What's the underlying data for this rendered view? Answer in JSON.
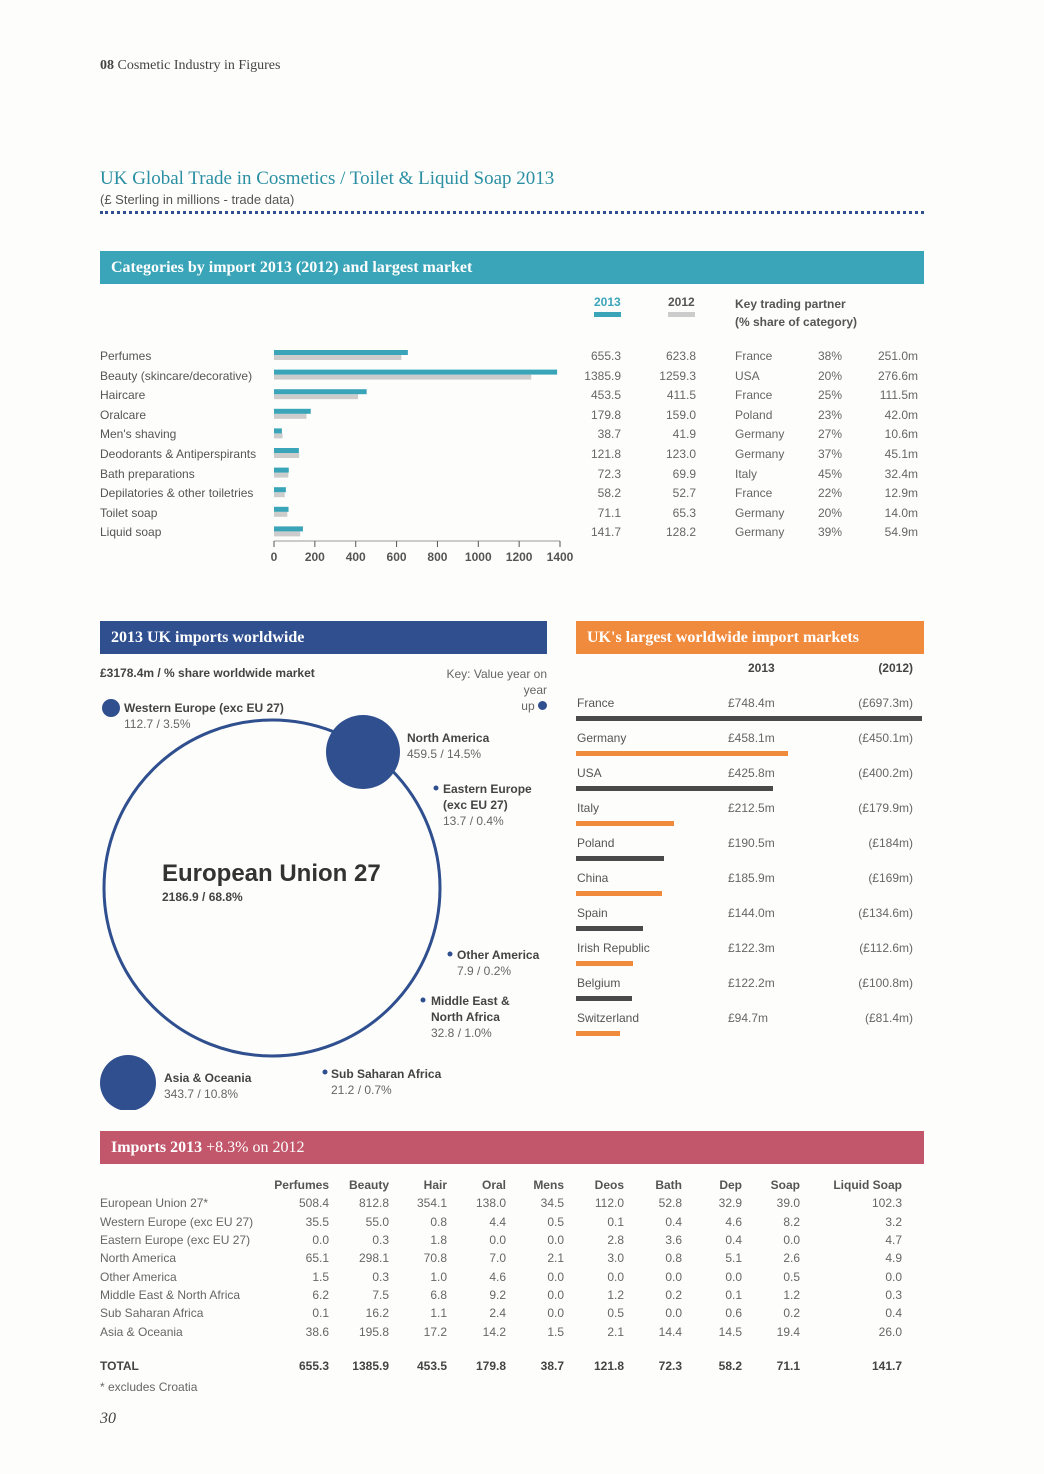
{
  "page": {
    "section_number": "08",
    "section_title": "Cosmetic Industry in Figures",
    "title": "UK Global Trade in Cosmetics / Toilet & Liquid Soap 2013",
    "subtitle": "(£ Sterling in millions - trade data)",
    "page_number": "30"
  },
  "colors": {
    "teal": "#3aa5b8",
    "navy": "#2f4f8f",
    "orange": "#f08a3c",
    "rose": "#c2566a",
    "grey": "#cccccc",
    "dark": "#4a4a4a"
  },
  "categories_panel": {
    "header": "Categories by import 2013 (2012) and largest market",
    "col_2013": "2013",
    "col_2012": "2012",
    "partner_header_1": "Key trading partner",
    "partner_header_2": "(% share of category)",
    "rows": [
      {
        "name": "Perfumes",
        "v2013": "655.3",
        "v2012": "623.8",
        "partner": "France",
        "share": "38%",
        "value": "251.0m"
      },
      {
        "name": "Beauty (skincare/decorative)",
        "v2013": "1385.9",
        "v2012": "1259.3",
        "partner": "USA",
        "share": "20%",
        "value": "276.6m"
      },
      {
        "name": "Haircare",
        "v2013": "453.5",
        "v2012": "411.5",
        "partner": "France",
        "share": "25%",
        "value": "111.5m"
      },
      {
        "name": "Oralcare",
        "v2013": "179.8",
        "v2012": "159.0",
        "partner": "Poland",
        "share": "23%",
        "value": "42.0m"
      },
      {
        "name": "Men's shaving",
        "v2013": "38.7",
        "v2012": "41.9",
        "partner": "Germany",
        "share": "27%",
        "value": "10.6m"
      },
      {
        "name": "Deodorants & Antiperspirants",
        "v2013": "121.8",
        "v2012": "123.0",
        "partner": "Germany",
        "share": "37%",
        "value": "45.1m"
      },
      {
        "name": "Bath preparations",
        "v2013": "72.3",
        "v2012": "69.9",
        "partner": "Italy",
        "share": "45%",
        "value": "32.4m"
      },
      {
        "name": "Depilatories & other toiletries",
        "v2013": "58.2",
        "v2012": "52.7",
        "partner": "France",
        "share": "22%",
        "value": "12.9m"
      },
      {
        "name": "Toilet soap",
        "v2013": "71.1",
        "v2012": "65.3",
        "partner": "Germany",
        "share": "20%",
        "value": "14.0m"
      },
      {
        "name": "Liquid soap",
        "v2013": "141.7",
        "v2012": "128.2",
        "partner": "Germany",
        "share": "39%",
        "value": "54.9m"
      }
    ]
  },
  "chart_data": [
    {
      "type": "bar",
      "orientation": "horizontal",
      "categories": [
        "Perfumes",
        "Beauty (skincare/decorative)",
        "Haircare",
        "Oralcare",
        "Men's shaving",
        "Deodorants & Antiperspirants",
        "Bath preparations",
        "Depilatories & other toiletries",
        "Toilet soap",
        "Liquid soap"
      ],
      "series": [
        {
          "name": "2013",
          "values": [
            655.3,
            1385.9,
            453.5,
            179.8,
            38.7,
            121.8,
            72.3,
            58.2,
            71.1,
            141.7
          ]
        },
        {
          "name": "2012",
          "values": [
            623.8,
            1259.3,
            411.5,
            159.0,
            41.9,
            123.0,
            69.9,
            52.7,
            65.3,
            128.2
          ]
        }
      ],
      "xlim": [
        0,
        1400
      ],
      "xticks": [
        "0",
        "200",
        "400",
        "600",
        "800",
        "1000",
        "1200",
        "1400"
      ]
    },
    {
      "type": "bar",
      "orientation": "horizontal",
      "categories": [
        "France",
        "Germany",
        "USA",
        "Italy",
        "Poland",
        "China",
        "Spain",
        "Irish Republic",
        "Belgium",
        "Switzerland"
      ],
      "series": [
        {
          "name": "2013",
          "values": [
            748.4,
            458.1,
            425.8,
            212.5,
            190.5,
            185.9,
            144.0,
            122.3,
            122.2,
            94.7
          ]
        }
      ],
      "values_2012": [
        697.3,
        450.1,
        400.2,
        179.9,
        184,
        169,
        134.6,
        112.6,
        100.8,
        81.4
      ]
    }
  ],
  "worldwide": {
    "header": "2013 UK imports worldwide",
    "total": "£3178.4m / % share worldwide market",
    "key": "Key: Value year on year",
    "key_up": "up",
    "regions": {
      "western_europe": {
        "name": "Western Europe (exc EU 27)",
        "value": "112.7 / 3.5%"
      },
      "north_america": {
        "name": "North America",
        "value": "459.5 / 14.5%"
      },
      "eastern_europe": {
        "name1": "Eastern Europe",
        "name2": "(exc EU 27)",
        "value": "13.7 / 0.4%"
      },
      "eu27": {
        "name": "European Union 27",
        "value": "2186.9 / 68.8%"
      },
      "other_america": {
        "name": "Other America",
        "value": "7.9 / 0.2%"
      },
      "mena": {
        "name1": "Middle East &",
        "name2": "North Africa",
        "value": "32.8 / 1.0%"
      },
      "asia": {
        "name": "Asia & Oceania",
        "value": "343.7 / 10.8%"
      },
      "ssa": {
        "name": "Sub Saharan Africa",
        "value": "21.2 / 0.7%"
      }
    }
  },
  "markets": {
    "header": "UK's largest worldwide import markets",
    "col_2013": "2013",
    "col_2012": "(2012)",
    "rows": [
      {
        "country": "France",
        "v2013": "£748.4m",
        "v2012": "(£697.3m)",
        "value": 748.4,
        "color": "#4a4a4a"
      },
      {
        "country": "Germany",
        "v2013": "£458.1m",
        "v2012": "(£450.1m)",
        "value": 458.1,
        "color": "#f08a3c"
      },
      {
        "country": "USA",
        "v2013": "£425.8m",
        "v2012": "(£400.2m)",
        "value": 425.8,
        "color": "#4a4a4a"
      },
      {
        "country": "Italy",
        "v2013": "£212.5m",
        "v2012": "(£179.9m)",
        "value": 212.5,
        "color": "#f08a3c"
      },
      {
        "country": "Poland",
        "v2013": "£190.5m",
        "v2012": "(£184m)",
        "value": 190.5,
        "color": "#4a4a4a"
      },
      {
        "country": "China",
        "v2013": "£185.9m",
        "v2012": "(£169m)",
        "value": 185.9,
        "color": "#f08a3c"
      },
      {
        "country": "Spain",
        "v2013": "£144.0m",
        "v2012": "(£134.6m)",
        "value": 144.0,
        "color": "#4a4a4a"
      },
      {
        "country": "Irish Republic",
        "v2013": "£122.3m",
        "v2012": "(£112.6m)",
        "value": 122.3,
        "color": "#f08a3c"
      },
      {
        "country": "Belgium",
        "v2013": "£122.2m",
        "v2012": "(£100.8m)",
        "value": 122.2,
        "color": "#4a4a4a"
      },
      {
        "country": "Switzerland",
        "v2013": "£94.7m",
        "v2012": "(£81.4m)",
        "value": 94.7,
        "color": "#f08a3c"
      }
    ]
  },
  "imports": {
    "header": "Imports 2013",
    "header_sub": "+8.3% on 2012",
    "columns": [
      "Perfumes",
      "Beauty",
      "Hair",
      "Oral",
      "Mens",
      "Deos",
      "Bath",
      "Dep",
      "Soap",
      "Liquid Soap"
    ],
    "rows": [
      {
        "region": "European Union 27*",
        "values": [
          "508.4",
          "812.8",
          "354.1",
          "138.0",
          "34.5",
          "112.0",
          "52.8",
          "32.9",
          "39.0",
          "102.3"
        ]
      },
      {
        "region": "Western Europe (exc EU 27)",
        "values": [
          "35.5",
          "55.0",
          "0.8",
          "4.4",
          "0.5",
          "0.1",
          "0.4",
          "4.6",
          "8.2",
          "3.2"
        ]
      },
      {
        "region": "Eastern Europe (exc EU 27)",
        "values": [
          "0.0",
          "0.3",
          "1.8",
          "0.0",
          "0.0",
          "2.8",
          "3.6",
          "0.4",
          "0.0",
          "4.7"
        ]
      },
      {
        "region": "North America",
        "values": [
          "65.1",
          "298.1",
          "70.8",
          "7.0",
          "2.1",
          "3.0",
          "0.8",
          "5.1",
          "2.6",
          "4.9"
        ]
      },
      {
        "region": "Other America",
        "values": [
          "1.5",
          "0.3",
          "1.0",
          "4.6",
          "0.0",
          "0.0",
          "0.0",
          "0.0",
          "0.5",
          "0.0"
        ]
      },
      {
        "region": "Middle East & North Africa",
        "values": [
          "6.2",
          "7.5",
          "6.8",
          "9.2",
          "0.0",
          "1.2",
          "0.2",
          "0.1",
          "1.2",
          "0.3"
        ]
      },
      {
        "region": "Sub Saharan Africa",
        "values": [
          "0.1",
          "16.2",
          "1.1",
          "2.4",
          "0.0",
          "0.5",
          "0.0",
          "0.6",
          "0.2",
          "0.4"
        ]
      },
      {
        "region": "Asia & Oceania",
        "values": [
          "38.6",
          "195.8",
          "17.2",
          "14.2",
          "1.5",
          "2.1",
          "14.4",
          "14.5",
          "19.4",
          "26.0"
        ]
      }
    ],
    "total": {
      "region": "TOTAL",
      "values": [
        "655.3",
        "1385.9",
        "453.5",
        "179.8",
        "38.7",
        "121.8",
        "72.3",
        "58.2",
        "71.1",
        "141.7"
      ]
    },
    "footnote": "* excludes Croatia"
  }
}
